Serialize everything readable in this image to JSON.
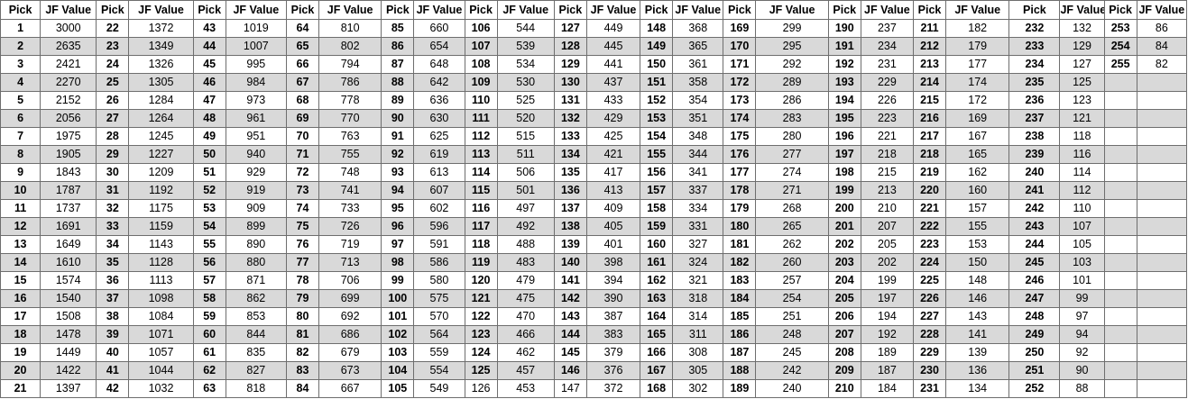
{
  "table": {
    "headers": [
      "Pick",
      "JF Value",
      "Pick",
      "JF Value",
      "Pick",
      "JF Value",
      "Pick",
      "JF Value",
      "Pick",
      "JF Value",
      "Pick",
      "JF Value",
      "Pick",
      "JF Value",
      "Pick",
      "JF Value",
      "Pick",
      "JF Value",
      "Pick",
      "JF Value",
      "Pick",
      "JF Value",
      "Pick",
      "JF Value",
      "Pick",
      "JF Value"
    ],
    "groups": [
      {
        "picks": [
          "1",
          "2",
          "3",
          "4",
          "5",
          "6",
          "7",
          "8",
          "9",
          "10",
          "11",
          "12",
          "13",
          "14",
          "15",
          "16",
          "17",
          "18",
          "19",
          "20",
          "21"
        ],
        "values": [
          "3000",
          "2635",
          "2421",
          "2270",
          "2152",
          "2056",
          "1975",
          "1905",
          "1843",
          "1787",
          "1737",
          "1691",
          "1649",
          "1610",
          "1574",
          "1540",
          "1508",
          "1478",
          "1449",
          "1422",
          "1397"
        ]
      },
      {
        "picks": [
          "22",
          "23",
          "24",
          "25",
          "26",
          "27",
          "28",
          "29",
          "30",
          "31",
          "32",
          "33",
          "34",
          "35",
          "36",
          "37",
          "38",
          "39",
          "40",
          "41",
          "42"
        ],
        "values": [
          "1372",
          "1349",
          "1326",
          "1305",
          "1284",
          "1264",
          "1245",
          "1227",
          "1209",
          "1192",
          "1175",
          "1159",
          "1143",
          "1128",
          "1113",
          "1098",
          "1084",
          "1071",
          "1057",
          "1044",
          "1032"
        ]
      },
      {
        "picks": [
          "43",
          "44",
          "45",
          "46",
          "47",
          "48",
          "49",
          "50",
          "51",
          "52",
          "53",
          "54",
          "55",
          "56",
          "57",
          "58",
          "59",
          "60",
          "61",
          "62",
          "63"
        ],
        "values": [
          "1019",
          "1007",
          "995",
          "984",
          "973",
          "961",
          "951",
          "940",
          "929",
          "919",
          "909",
          "899",
          "890",
          "880",
          "871",
          "862",
          "853",
          "844",
          "835",
          "827",
          "818"
        ]
      },
      {
        "picks": [
          "64",
          "65",
          "66",
          "67",
          "68",
          "69",
          "70",
          "71",
          "72",
          "73",
          "74",
          "75",
          "76",
          "77",
          "78",
          "79",
          "80",
          "81",
          "82",
          "83",
          "84"
        ],
        "values": [
          "810",
          "802",
          "794",
          "786",
          "778",
          "770",
          "763",
          "755",
          "748",
          "741",
          "733",
          "726",
          "719",
          "713",
          "706",
          "699",
          "692",
          "686",
          "679",
          "673",
          "667"
        ]
      },
      {
        "picks": [
          "85",
          "86",
          "87",
          "88",
          "89",
          "90",
          "91",
          "92",
          "93",
          "94",
          "95",
          "96",
          "97",
          "98",
          "99",
          "100",
          "101",
          "102",
          "103",
          "104",
          "105"
        ],
        "values": [
          "660",
          "654",
          "648",
          "642",
          "636",
          "630",
          "625",
          "619",
          "613",
          "607",
          "602",
          "596",
          "591",
          "586",
          "580",
          "575",
          "570",
          "564",
          "559",
          "554",
          "549"
        ]
      },
      {
        "picks": [
          "106",
          "107",
          "108",
          "109",
          "110",
          "111",
          "112",
          "113",
          "114",
          "115",
          "116",
          "117",
          "118",
          "119",
          "120",
          "121",
          "122",
          "123",
          "124",
          "125",
          "126"
        ],
        "values": [
          "544",
          "539",
          "534",
          "530",
          "525",
          "520",
          "515",
          "511",
          "506",
          "501",
          "497",
          "492",
          "488",
          "483",
          "479",
          "475",
          "470",
          "466",
          "462",
          "457",
          "453"
        ]
      },
      {
        "picks": [
          "127",
          "128",
          "129",
          "130",
          "131",
          "132",
          "133",
          "134",
          "135",
          "136",
          "137",
          "138",
          "139",
          "140",
          "141",
          "142",
          "143",
          "144",
          "145",
          "146",
          "147"
        ],
        "values": [
          "449",
          "445",
          "441",
          "437",
          "433",
          "429",
          "425",
          "421",
          "417",
          "413",
          "409",
          "405",
          "401",
          "398",
          "394",
          "390",
          "387",
          "383",
          "379",
          "376",
          "372"
        ]
      },
      {
        "picks": [
          "148",
          "149",
          "150",
          "151",
          "152",
          "153",
          "154",
          "155",
          "156",
          "157",
          "158",
          "159",
          "160",
          "161",
          "162",
          "163",
          "164",
          "165",
          "166",
          "167",
          "168"
        ],
        "values": [
          "368",
          "365",
          "361",
          "358",
          "354",
          "351",
          "348",
          "344",
          "341",
          "337",
          "334",
          "331",
          "327",
          "324",
          "321",
          "318",
          "314",
          "311",
          "308",
          "305",
          "302"
        ]
      },
      {
        "picks": [
          "169",
          "170",
          "171",
          "172",
          "173",
          "174",
          "175",
          "176",
          "177",
          "178",
          "179",
          "180",
          "181",
          "182",
          "183",
          "184",
          "185",
          "186",
          "187",
          "188",
          "189"
        ],
        "values": [
          "299",
          "295",
          "292",
          "289",
          "286",
          "283",
          "280",
          "277",
          "274",
          "271",
          "268",
          "265",
          "262",
          "260",
          "257",
          "254",
          "251",
          "248",
          "245",
          "242",
          "240"
        ]
      },
      {
        "picks": [
          "190",
          "191",
          "192",
          "193",
          "194",
          "195",
          "196",
          "197",
          "198",
          "199",
          "200",
          "201",
          "202",
          "203",
          "204",
          "205",
          "206",
          "207",
          "208",
          "209",
          "210"
        ],
        "values": [
          "237",
          "234",
          "231",
          "229",
          "226",
          "223",
          "221",
          "218",
          "215",
          "213",
          "210",
          "207",
          "205",
          "202",
          "199",
          "197",
          "194",
          "192",
          "189",
          "187",
          "184"
        ]
      },
      {
        "picks": [
          "211",
          "212",
          "213",
          "214",
          "215",
          "216",
          "217",
          "218",
          "219",
          "220",
          "221",
          "222",
          "223",
          "224",
          "225",
          "226",
          "227",
          "228",
          "229",
          "230",
          "231"
        ],
        "values": [
          "182",
          "179",
          "177",
          "174",
          "172",
          "169",
          "167",
          "165",
          "162",
          "160",
          "157",
          "155",
          "153",
          "150",
          "148",
          "146",
          "143",
          "141",
          "139",
          "136",
          "134"
        ]
      },
      {
        "picks": [
          "232",
          "233",
          "234",
          "235",
          "236",
          "237",
          "238",
          "239",
          "240",
          "241",
          "242",
          "243",
          "244",
          "245",
          "246",
          "247",
          "248",
          "249",
          "250",
          "251",
          "252"
        ],
        "values": [
          "132",
          "129",
          "127",
          "125",
          "123",
          "121",
          "118",
          "116",
          "114",
          "112",
          "110",
          "107",
          "105",
          "103",
          "101",
          "99",
          "97",
          "94",
          "92",
          "90",
          "88"
        ]
      },
      {
        "picks": [
          "253",
          "254",
          "255",
          "",
          "",
          "",
          "",
          "",
          "",
          "",
          "",
          "",
          "",
          "",
          "",
          "",
          "",
          "",
          "",
          "",
          ""
        ],
        "values": [
          "86",
          "84",
          "82",
          "",
          "",
          "",
          "",
          "",
          "",
          "",
          "",
          "",
          "",
          "",
          "",
          "",
          "",
          "",
          "",
          "",
          ""
        ]
      }
    ]
  }
}
